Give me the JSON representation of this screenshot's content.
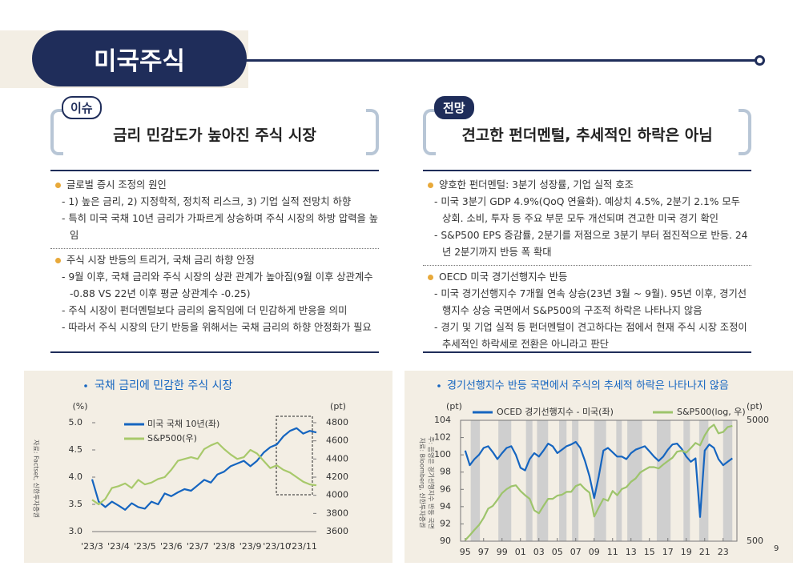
{
  "header": {
    "title": "미국주식"
  },
  "panels": [
    {
      "tag": "이슈",
      "heading": "금리 민감도가 높아진 주식 시장",
      "sections": [
        {
          "bullet": "글로벌 증시 조정의 원인",
          "items": [
            "- 1) 높은 금리, 2) 지정학적, 정치적 리스크, 3) 기업 실적 전망치 하향",
            "- 특히 미국 국채 10년 금리가 가파르게 상승하며 주식 시장의 하방 압력을 높임"
          ]
        },
        {
          "bullet": "주식 시장 반등의 트리거, 국채 금리 하향 안정",
          "items": [
            "- 9월 이후, 국채 금리와 주식 시장의 상관 관계가 높아짐(9월 이후 상관계수 -0.88 VS 22년 이후 평균 상관계수 -0.25)",
            "- 주식 시장이 펀더멘털보다 금리의 움직임에 더 민감하게 반응을 의미",
            "- 따라서 주식 시장의 단기 반등을 위해서는 국채 금리의 하향 안정화가 필요"
          ]
        }
      ]
    },
    {
      "tag": "전망",
      "heading": "견고한 펀더멘털, 추세적인 하락은 아님",
      "sections": [
        {
          "bullet": "양호한 펀더멘털: 3분기 성장률, 기업 실적 호조",
          "items": [
            "- 미국 3분기 GDP 4.9%(QoQ 연율화). 예상치 4.5%, 2분기 2.1% 모두 상회. 소비, 투자 등 주요 부문 모두 개선되며 견고한 미국 경기 확인",
            "- S&P500 EPS 증감률, 2분기를 저점으로 3분기 부터 점진적으로 반등. 24년 2분기까지 반등 폭 확대"
          ]
        },
        {
          "bullet": "OECD 미국 경기선행지수 반등",
          "items": [
            "- 미국 경기선행지수 7개월 연속 상승(23년 3월 ~ 9월). 95년 이후, 경기선행지수 상승 국면에서 S&P500의 구조적 하락은 나타나지 않음",
            "- 경기 및 기업 실적 등 펀더멘털이 견고하다는 점에서 현재 주식 시장 조정이 추세적인 하락세로 전환은 아니라고 판단"
          ]
        }
      ]
    }
  ],
  "chart_data": [
    {
      "type": "line",
      "title": "국채 금리에 민감한 주식 시장",
      "y_label": "(%)",
      "y2_label": "(pt)",
      "source": "자료: Factset, 신한투자증권",
      "categories": [
        "'23/3",
        null,
        null,
        null,
        "'23/4",
        null,
        null,
        null,
        "'23/5",
        null,
        null,
        null,
        "'23/6",
        null,
        null,
        null,
        "'23/7",
        null,
        null,
        null,
        "'23/8",
        null,
        null,
        null,
        "'23/9",
        null,
        null,
        null,
        "'23/10",
        null,
        null,
        null,
        "'23/11",
        null,
        null
      ],
      "series": [
        {
          "name": "미국 국채 10년(좌)",
          "color": "#1565c0",
          "values": [
            3.96,
            3.55,
            3.45,
            3.55,
            3.48,
            3.4,
            3.52,
            3.45,
            3.42,
            3.55,
            3.5,
            3.7,
            3.65,
            3.72,
            3.78,
            3.75,
            3.85,
            3.95,
            3.9,
            4.05,
            4.1,
            4.2,
            4.25,
            4.3,
            4.2,
            4.3,
            4.45,
            4.55,
            4.6,
            4.75,
            4.85,
            4.9,
            4.8,
            4.85,
            4.82
          ]
        },
        {
          "name": "S&P500(우)",
          "color": "#a8c96b",
          "axis": "y2",
          "values": [
            3950,
            3900,
            3960,
            4080,
            4100,
            4130,
            4080,
            4170,
            4120,
            4140,
            4180,
            4200,
            4280,
            4380,
            4400,
            4420,
            4400,
            4510,
            4550,
            4580,
            4510,
            4450,
            4400,
            4420,
            4500,
            4460,
            4380,
            4300,
            4330,
            4280,
            4250,
            4200,
            4150,
            4120,
            4110
          ]
        }
      ],
      "ylim": [
        3,
        5
      ],
      "yticks": [
        {
          "value": 3,
          "label": "3.0"
        },
        3.5,
        {
          "value": 4,
          "label": "4.0"
        },
        4.5,
        {
          "value": 5,
          "label": "5.0"
        }
      ],
      "y2lim": [
        3600,
        4800
      ],
      "y2ticks": [
        3600,
        3800,
        4000,
        4200,
        4400,
        4600,
        4800
      ]
    },
    {
      "type": "line",
      "title": "경기선행지수 반등 국면에서 주식의 추세적 하락은 나타나지 않음",
      "y_label": "(pt)",
      "y2_label": "(pt)",
      "source": "자료: Bloomberg, 신한투자증권",
      "note": "주: 음영은 경기선행지수 반등 국면",
      "x": [
        1995,
        1995.5,
        1996,
        1996.5,
        1997,
        1997.5,
        1998,
        1998.5,
        1999,
        1999.5,
        2000,
        2000.5,
        2001,
        2001.5,
        2002,
        2002.5,
        2003,
        2003.5,
        2004,
        2004.5,
        2005,
        2005.5,
        2006,
        2006.5,
        2007,
        2007.5,
        2008,
        2008.5,
        2009,
        2009.5,
        2010,
        2010.5,
        2011,
        2011.5,
        2012,
        2012.5,
        2013,
        2013.5,
        2014,
        2014.5,
        2015,
        2015.5,
        2016,
        2016.5,
        2017,
        2017.5,
        2018,
        2018.5,
        2019,
        2019.5,
        2020,
        2020.5,
        2021,
        2021.5,
        2022,
        2022.5,
        2023,
        2023.5,
        2024
      ],
      "xlim": [
        1994.5,
        2024.5
      ],
      "xticks": [
        {
          "value": 1995,
          "label": "95"
        },
        {
          "value": 1997,
          "label": "97"
        },
        {
          "value": 1999,
          "label": "99"
        },
        {
          "value": 2001,
          "label": "01"
        },
        {
          "value": 2003,
          "label": "03"
        },
        {
          "value": 2005,
          "label": "05"
        },
        {
          "value": 2007,
          "label": "07"
        },
        {
          "value": 2009,
          "label": "09"
        },
        {
          "value": 2011,
          "label": "11"
        },
        {
          "value": 2013,
          "label": "13"
        },
        {
          "value": 2015,
          "label": "15"
        },
        {
          "value": 2017,
          "label": "17"
        },
        {
          "value": 2019,
          "label": "19"
        },
        {
          "value": 2021,
          "label": "21"
        },
        {
          "value": 2023,
          "label": "23"
        }
      ],
      "series": [
        {
          "name": "OCED 경기선행지수 - 미국(좌)",
          "color": "#1565c0",
          "values": [
            100.5,
            98.8,
            99.5,
            100,
            100.8,
            101,
            100.3,
            99.5,
            100.2,
            100.8,
            101,
            100,
            98.5,
            98.2,
            99.5,
            100.2,
            99.8,
            100.5,
            101.3,
            101,
            100.2,
            100.6,
            101,
            101.2,
            101.5,
            100.8,
            99.3,
            97.5,
            95,
            97.5,
            100.5,
            100.8,
            100.3,
            99.8,
            99.8,
            99.5,
            100.2,
            100.6,
            100.8,
            101,
            100.4,
            99.8,
            99.3,
            99.8,
            100.6,
            101.2,
            101.3,
            100.7,
            99.8,
            99.2,
            99.6,
            92.8,
            100.5,
            101.2,
            100.8,
            99.5,
            98.8,
            99.2,
            99.6
          ]
        },
        {
          "name": "S&P500(log, 우)",
          "color": "#9dc46b",
          "axis": "y2",
          "values": [
            510,
            560,
            620,
            680,
            780,
            930,
            980,
            1100,
            1250,
            1350,
            1420,
            1450,
            1300,
            1200,
            1120,
            900,
            850,
            980,
            1120,
            1120,
            1190,
            1210,
            1280,
            1280,
            1430,
            1480,
            1350,
            1260,
            800,
            950,
            1120,
            1080,
            1300,
            1200,
            1350,
            1400,
            1550,
            1650,
            1850,
            1950,
            2050,
            2050,
            2000,
            2150,
            2300,
            2450,
            2750,
            2800,
            2700,
            2950,
            3250,
            3100,
            3750,
            4300,
            4600,
            3900,
            4000,
            4400,
            4500
          ]
        }
      ],
      "ylim": [
        90,
        104
      ],
      "yticks": [
        90,
        92,
        94,
        96,
        98,
        100,
        102,
        104
      ],
      "y2lim": [
        500,
        5000
      ],
      "y2ticks": [
        500,
        5000
      ],
      "y2_log": true,
      "frame": true,
      "shaded_periods": [
        [
          1995.6,
          1996.6
        ],
        [
          1998.6,
          2000.0
        ],
        [
          2001.6,
          2002.3
        ],
        [
          2002.8,
          2004.0
        ],
        [
          2005.2,
          2006.0
        ],
        [
          2006.6,
          2007.3
        ],
        [
          2009.0,
          2010.3
        ],
        [
          2011.4,
          2012.0
        ],
        [
          2012.6,
          2014.2
        ],
        [
          2015.8,
          2017.3
        ],
        [
          2018.7,
          2019.4
        ],
        [
          2020.4,
          2021.4
        ],
        [
          2023.0,
          2024.0
        ]
      ]
    }
  ],
  "page_number": "9"
}
